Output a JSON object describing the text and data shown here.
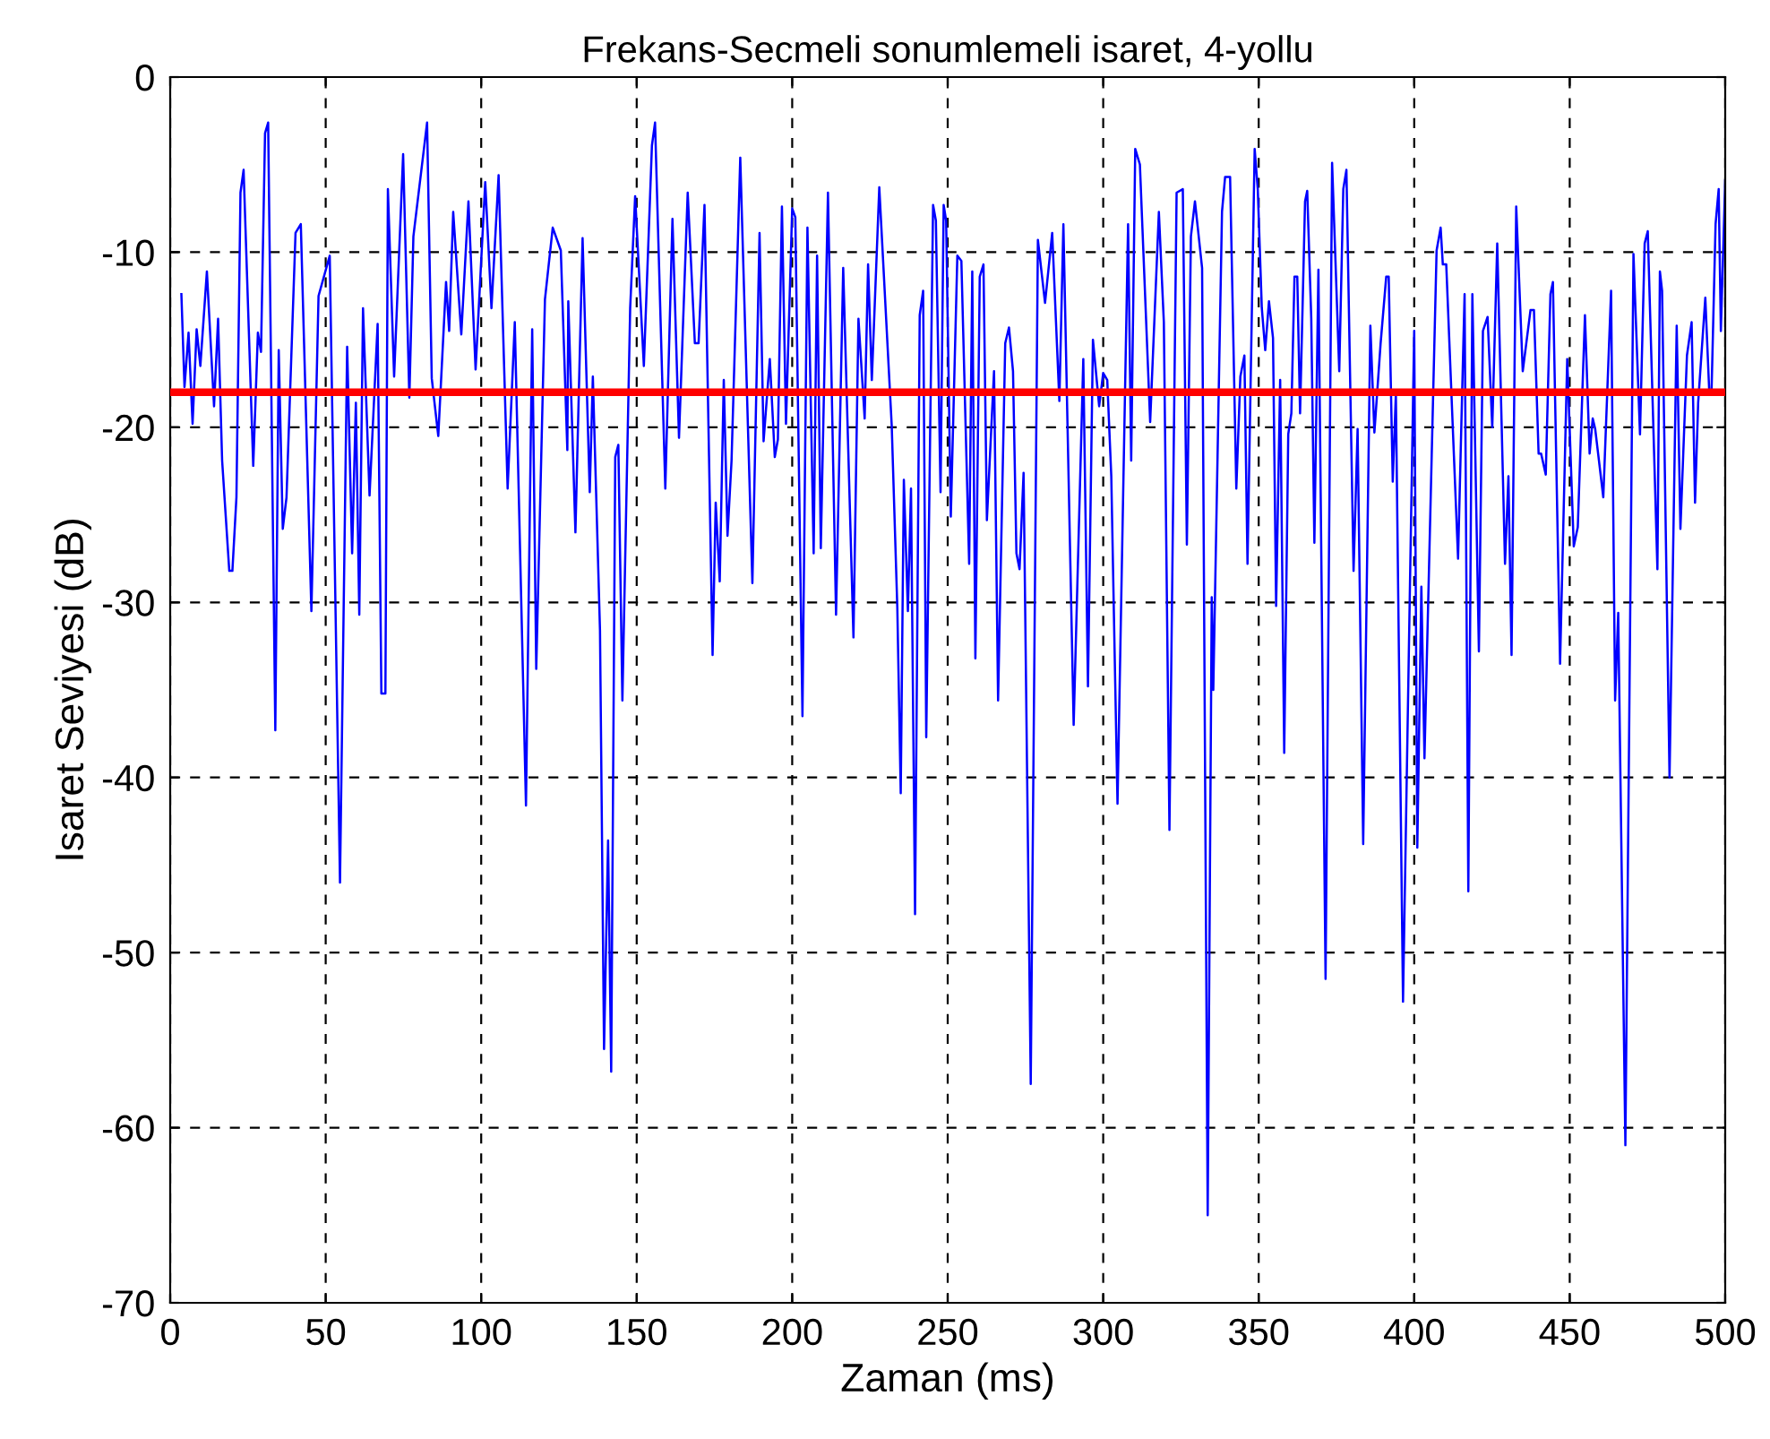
{
  "chart_data": {
    "type": "line",
    "title": "Frekans-Secmeli sonumlemeli isaret, 4-yollu",
    "xlabel": "Zaman (ms)",
    "ylabel": "Isaret Seviyesi (dB)",
    "xlim": [
      0,
      500
    ],
    "xticks": [
      0,
      50,
      100,
      150,
      200,
      250,
      300,
      350,
      400,
      450,
      500
    ],
    "ylim": [
      -70,
      0
    ],
    "yticks": [
      -70,
      -60,
      -50,
      -40,
      -30,
      -20,
      -10,
      0
    ],
    "grid": true,
    "marker": "none",
    "line_style": "solid",
    "ref_lines": [
      {
        "axis": "y",
        "value": -18,
        "color": "#ff0000",
        "line_style": "solid"
      }
    ],
    "series": [
      {
        "color": "#0000ff",
        "x": [
          3.6,
          4.6,
          5.9,
          7.2,
          8.5,
          9.7,
          11.8,
          14.1,
          15.4,
          16.7,
          19,
          20,
          21.3,
          22.6,
          23.6,
          26.7,
          28.2,
          29.2,
          30.5,
          31.5,
          33.8,
          34.9,
          36.2,
          37.4,
          40.3,
          42,
          45.4,
          47.7,
          51.3,
          54.6,
          56.9,
          58.5,
          59.7,
          60.8,
          62,
          64.1,
          66.7,
          67.9,
          69.2,
          70,
          72,
          74.9,
          76.9,
          78.2,
          82.6,
          84.1,
          86.2,
          88.7,
          89.7,
          91,
          93.6,
          95.9,
          98.2,
          101.3,
          103.3,
          105.6,
          108.5,
          110.8,
          114.4,
          116.4,
          117.7,
          120.5,
          123,
          125.6,
          127.7,
          128,
          130.3,
          132.6,
          134.9,
          135.9,
          138.2,
          139.5,
          140.8,
          141.8,
          143.1,
          144.1,
          145.4,
          147.9,
          149.5,
          152.3,
          154.9,
          155.9,
          158.2,
          159.2,
          161.5,
          163.6,
          166.4,
          168.7,
          169.9,
          171.8,
          174.4,
          175.4,
          176.7,
          178,
          179.2,
          180.5,
          183.3,
          187.2,
          189.5,
          190.8,
          192.8,
          194.4,
          195.4,
          196.7,
          198,
          200,
          201,
          203.3,
          204.9,
          206.9,
          208,
          209.2,
          211.5,
          214.1,
          216.4,
          219.7,
          221.3,
          223.3,
          224.4,
          225.6,
          228,
          232,
          233.8,
          234.9,
          235.9,
          237.2,
          238.2,
          239.5,
          241,
          242.1,
          243.1,
          245.3,
          246.2,
          247.7,
          248.7,
          249.5,
          251,
          253.1,
          254.4,
          256.9,
          257.9,
          258.9,
          260.3,
          261.5,
          262.6,
          264.9,
          266.2,
          268.5,
          269.7,
          271,
          272.1,
          273.1,
          274.4,
          276.7,
          279,
          281.3,
          283.6,
          285.9,
          287.2,
          290.5,
          293.6,
          295.1,
          296.7,
          298.7,
          300,
          301.3,
          302.6,
          304.6,
          308,
          309,
          310.3,
          311.8,
          315.1,
          317.9,
          319.5,
          321.3,
          323.6,
          325.6,
          326.9,
          328.2,
          329.5,
          331.8,
          333.6,
          334.9,
          335.4,
          338.2,
          339.2,
          340.8,
          342.8,
          344.1,
          345.4,
          346.4,
          348.7,
          349.7,
          351,
          352.1,
          353.3,
          354.6,
          355.6,
          356.9,
          358.2,
          359.5,
          360.5,
          361.5,
          362.4,
          363.3,
          364.9,
          365.6,
          366.9,
          367.9,
          369.2,
          371.5,
          373.6,
          375.9,
          377.2,
          378.2,
          380.5,
          381.8,
          383.6,
          385.9,
          387.2,
          389.2,
          391,
          391.8,
          393.1,
          394.1,
          396.4,
          400,
          401,
          402.3,
          403.3,
          407.2,
          408.5,
          409.2,
          410.3,
          414.1,
          416.2,
          417.4,
          418.7,
          420.8,
          422.1,
          423.6,
          425.1,
          426.7,
          429.2,
          430.3,
          431.3,
          432.8,
          434.9,
          437.4,
          438.5,
          440,
          440.8,
          442.3,
          443.8,
          444.6,
          446.9,
          449.2,
          451.3,
          452.6,
          454.9,
          456.4,
          457.4,
          458.2,
          460.8,
          463.3,
          464.6,
          465.6,
          467.9,
          470.5,
          472.6,
          474.1,
          475.1,
          478.2,
          479,
          479.7,
          482.1,
          484.4,
          485.6,
          487.7,
          489.2,
          490.3,
          491.3,
          493.6,
          494.9,
          495.6,
          496.9,
          497.9,
          498.6,
          500
        ],
        "values": [
          -12.4,
          -17.7,
          -14.6,
          -19.8,
          -14.4,
          -16.5,
          -11.1,
          -18.8,
          -13.8,
          -21.9,
          -28.2,
          -28.2,
          -24,
          -6.6,
          -5.3,
          -22.2,
          -14.6,
          -15.7,
          -3.2,
          -2.6,
          -37.3,
          -15.6,
          -25.8,
          -24,
          -8.9,
          -8.4,
          -30.5,
          -12.5,
          -10.2,
          -46,
          -15.4,
          -27.2,
          -18.6,
          -30.7,
          -13.2,
          -23.9,
          -14.1,
          -35.2,
          -35.2,
          -6.4,
          -17.1,
          -4.4,
          -18.3,
          -9.1,
          -2.6,
          -17.2,
          -20.5,
          -11.7,
          -14.5,
          -7.7,
          -14.7,
          -7.1,
          -16.7,
          -6,
          -13.2,
          -5.6,
          -23.5,
          -14,
          -41.6,
          -14.4,
          -33.8,
          -12.7,
          -8.6,
          -9.9,
          -21.3,
          -12.8,
          -26,
          -9.2,
          -23.7,
          -17.1,
          -31.6,
          -55.5,
          -43.6,
          -56.8,
          -21.7,
          -21,
          -35.6,
          -13.2,
          -6.8,
          -16.5,
          -3.9,
          -2.6,
          -17.2,
          -23.5,
          -8.1,
          -20.6,
          -6.6,
          -15.2,
          -15.2,
          -7.3,
          -33,
          -24.3,
          -28.8,
          -17.3,
          -26.2,
          -21.9,
          -4.6,
          -28.9,
          -8.9,
          -20.8,
          -16.1,
          -21.7,
          -20.7,
          -7.4,
          -19.8,
          -7.5,
          -8,
          -36.5,
          -8.6,
          -27.2,
          -10.2,
          -26.9,
          -6.6,
          -30.7,
          -10.9,
          -32,
          -13.8,
          -19.5,
          -10.7,
          -17.3,
          -6.3,
          -19.9,
          -30.3,
          -40.9,
          -23,
          -30.5,
          -23.5,
          -47.8,
          -13.6,
          -12.2,
          -37.7,
          -7.3,
          -8.2,
          -23.7,
          -7.3,
          -8.2,
          -25.1,
          -10.2,
          -10.5,
          -27.8,
          -11.1,
          -33.2,
          -11.4,
          -10.7,
          -25.3,
          -16.8,
          -35.6,
          -15.2,
          -14.3,
          -16.8,
          -27.2,
          -28.1,
          -22.6,
          -57.5,
          -9.3,
          -12.9,
          -8.9,
          -18.5,
          -8.4,
          -37,
          -16.1,
          -34.8,
          -15,
          -18.8,
          -16.9,
          -17.3,
          -22.8,
          -41.5,
          -8.4,
          -21.9,
          -4.1,
          -5,
          -19.7,
          -7.7,
          -14,
          -43,
          -6.6,
          -6.4,
          -26.7,
          -9.1,
          -7.1,
          -10.9,
          -65,
          -29.7,
          -35,
          -7.7,
          -5.7,
          -5.7,
          -23.5,
          -17.1,
          -15.9,
          -27.8,
          -4.1,
          -6.4,
          -13.2,
          -15.6,
          -12.8,
          -14.9,
          -30.2,
          -17.3,
          -38.6,
          -20.4,
          -19.2,
          -11.4,
          -11.4,
          -19.2,
          -7.1,
          -6.5,
          -13.8,
          -26.6,
          -11,
          -51.5,
          -4.9,
          -16.8,
          -6.4,
          -5.3,
          -28.2,
          -20.1,
          -43.8,
          -14.2,
          -20.3,
          -15.2,
          -11.4,
          -11.4,
          -23.1,
          -18.1,
          -52.8,
          -14.5,
          -44,
          -29.1,
          -38.9,
          -9.9,
          -8.6,
          -10.7,
          -10.7,
          -27.5,
          -12.4,
          -46.5,
          -12.4,
          -32.8,
          -14.5,
          -13.7,
          -20,
          -9.5,
          -27.8,
          -22.8,
          -33,
          -7.4,
          -16.8,
          -13.3,
          -13.3,
          -21.5,
          -21.5,
          -22.7,
          -12.4,
          -11.7,
          -33.5,
          -16.1,
          -26.8,
          -25.7,
          -13.6,
          -21.5,
          -19.5,
          -20.1,
          -24,
          -12.2,
          -35.6,
          -30.6,
          -61,
          -10.1,
          -20.4,
          -9.5,
          -8.8,
          -28.1,
          -11.1,
          -12.2,
          -40,
          -14.2,
          -25.8,
          -15.9,
          -14,
          -24.3,
          -18.6,
          -12.6,
          -18.1,
          -18,
          -8.4,
          -6.4,
          -14.5,
          -5.9
        ]
      }
    ]
  }
}
